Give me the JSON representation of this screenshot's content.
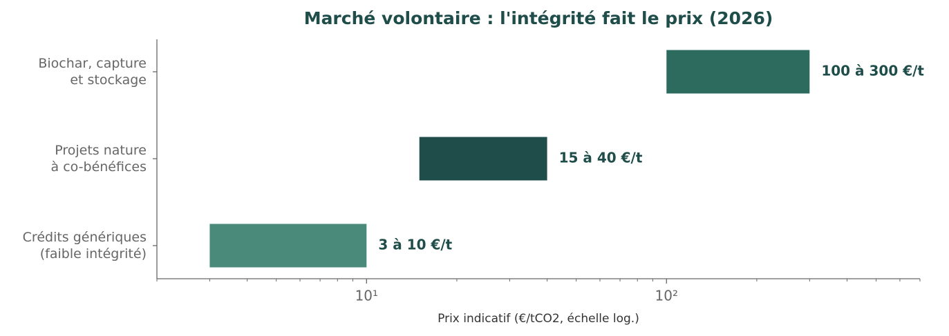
{
  "chart_data": {
    "type": "bar",
    "orientation": "horizontal",
    "title": "Marché volontaire : l'intégrité fait le prix (2026)",
    "xlabel": "Prix indicatif (€/tCO2, échelle log.)",
    "categories": [
      "Biochar, capture\net stockage",
      "Projets nature\nà co-bénéfices",
      "Crédits génériques\n(faible intégrité)"
    ],
    "low": [
      100,
      15,
      3
    ],
    "high": [
      300,
      40,
      10
    ],
    "value_labels": [
      "100 à 300 €/t",
      "15 à 40 €/t",
      "3 à 10 €/t"
    ],
    "colors": [
      "#2e6b5f",
      "#1f4d4a",
      "#4a8a7a"
    ],
    "xscale": "log",
    "xlim": [
      2,
      700
    ],
    "xticks": [
      {
        "value": 10,
        "label": "10¹"
      },
      {
        "value": 100,
        "label": "10²"
      }
    ],
    "xticks_minor": [
      2,
      3,
      4,
      5,
      6,
      7,
      8,
      9,
      20,
      30,
      40,
      50,
      60,
      70,
      80,
      90,
      200,
      300,
      400,
      500,
      600,
      700
    ]
  }
}
